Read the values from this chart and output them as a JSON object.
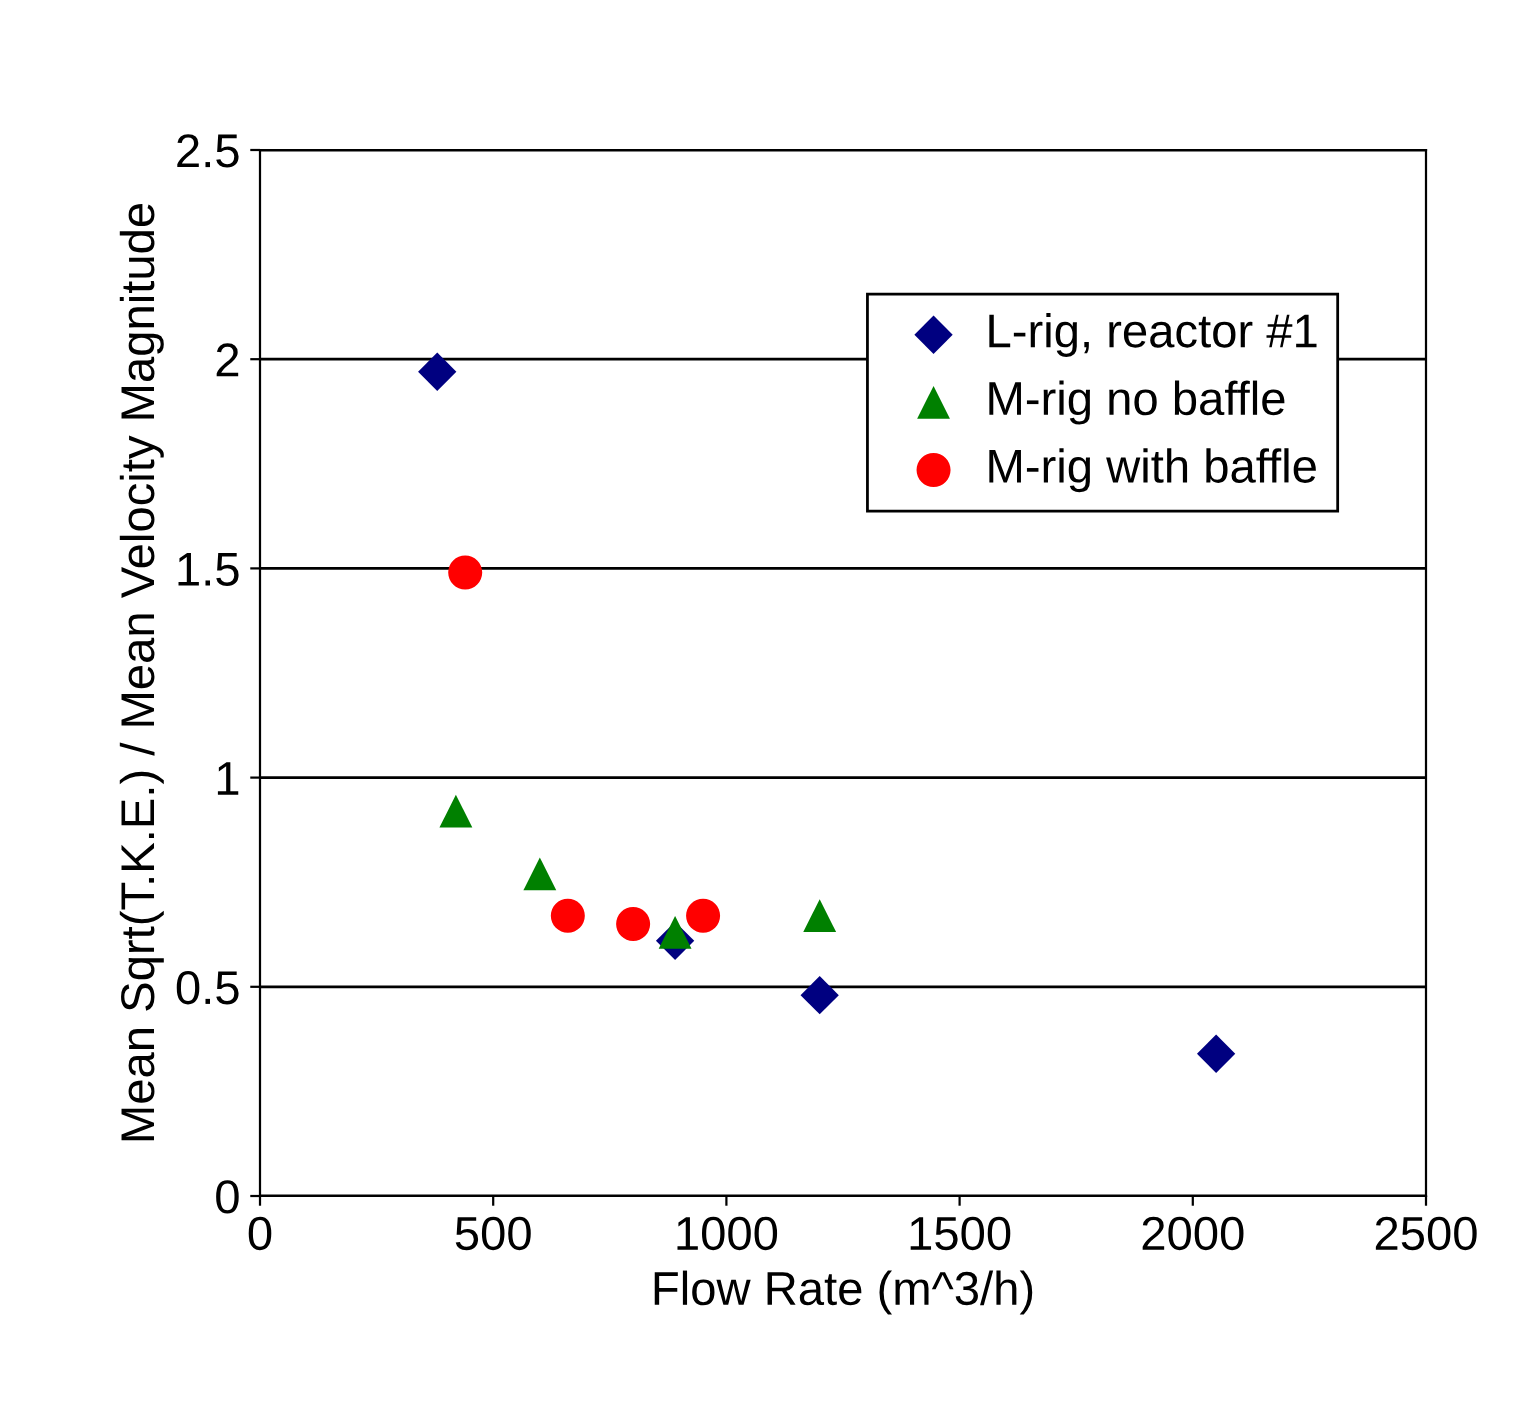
{
  "chart_data": {
    "type": "scatter",
    "xlabel": "Flow Rate (m^3/h)",
    "ylabel": "Mean Sqrt(T.K.E.) / Mean Velocity Magnitude",
    "xlim": [
      0,
      2500
    ],
    "xticks": [
      0,
      500,
      1000,
      1500,
      2000,
      2500
    ],
    "ylim": [
      0,
      2.5
    ],
    "yticks": [
      0,
      0.5,
      1,
      1.5,
      2,
      2.5
    ],
    "grid": "y",
    "legend": "top right",
    "series": [
      {
        "name": "L-rig, reactor #1",
        "color": "#000080",
        "marker": "diamond",
        "x": [
          380,
          890,
          1200,
          2050
        ],
        "values": [
          1.97,
          0.61,
          0.48,
          0.34
        ]
      },
      {
        "name": "M-rig no baffle",
        "color": "#008000",
        "marker": "triangle",
        "x": [
          420,
          600,
          890,
          1200
        ],
        "values": [
          0.92,
          0.77,
          0.63,
          0.67
        ]
      },
      {
        "name": "M-rig with baffle",
        "color": "#ff0000",
        "marker": "circle",
        "x": [
          440,
          660,
          800,
          950
        ],
        "values": [
          1.49,
          0.67,
          0.65,
          0.67
        ]
      }
    ]
  }
}
